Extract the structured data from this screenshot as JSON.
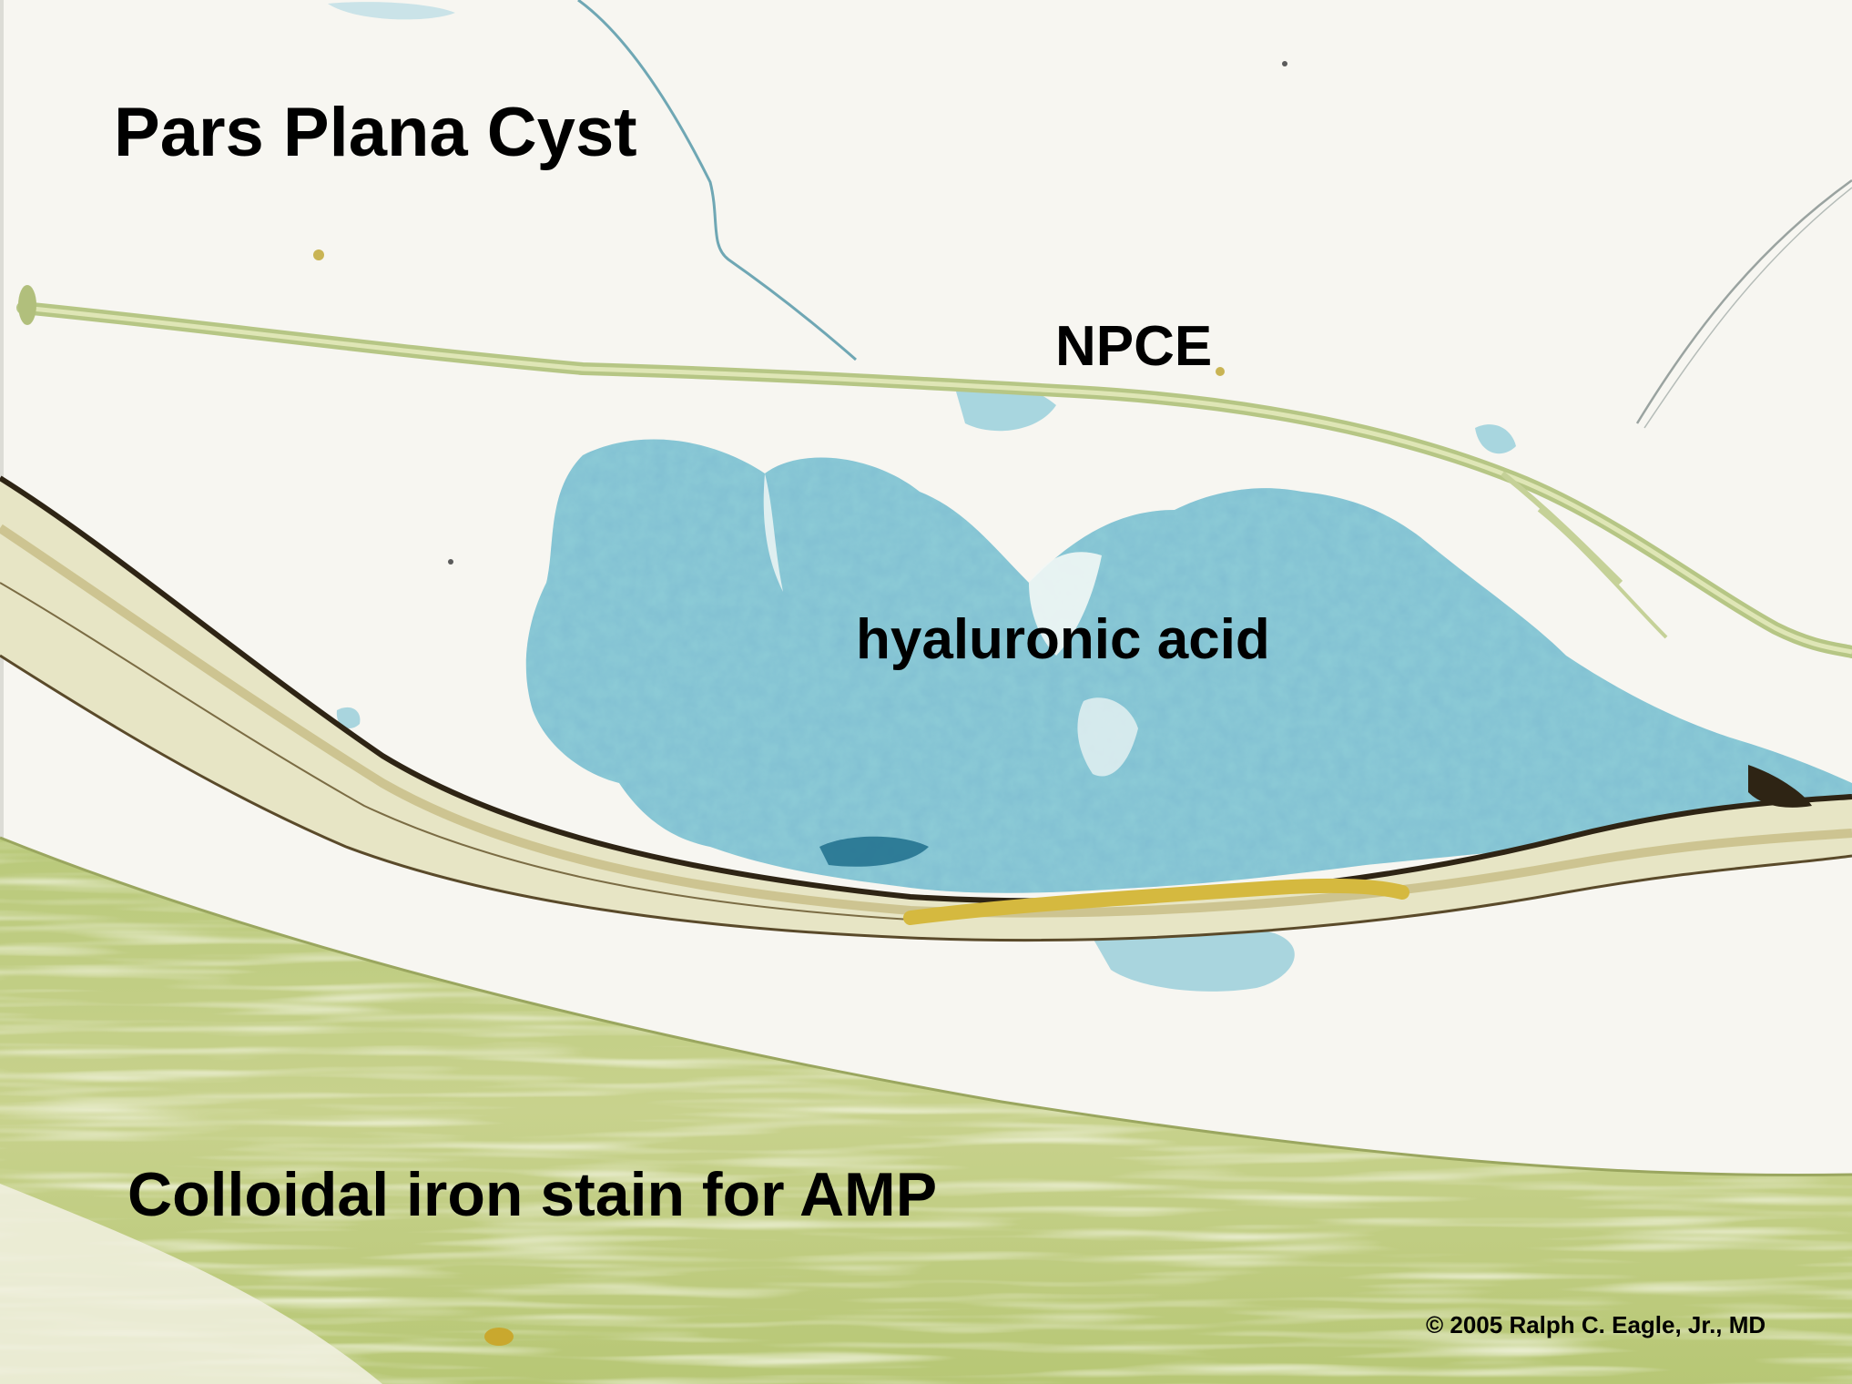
{
  "image": {
    "subject": "histology micrograph",
    "palette": {
      "background": "#f7f6f1",
      "stain_blue": "#8ccbd6",
      "stain_blue_dark": "#3f8fb0",
      "tissue_green": "#c9cf86",
      "tissue_yellow": "#d7c36a",
      "pigment": "#2e2414"
    }
  },
  "labels": {
    "title": "Pars Plana Cyst",
    "npce": "NPCE",
    "content": "hyaluronic acid",
    "stain": "Colloidal iron stain for AMP",
    "copyright": "© 2005 Ralph C. Eagle, Jr., MD"
  }
}
